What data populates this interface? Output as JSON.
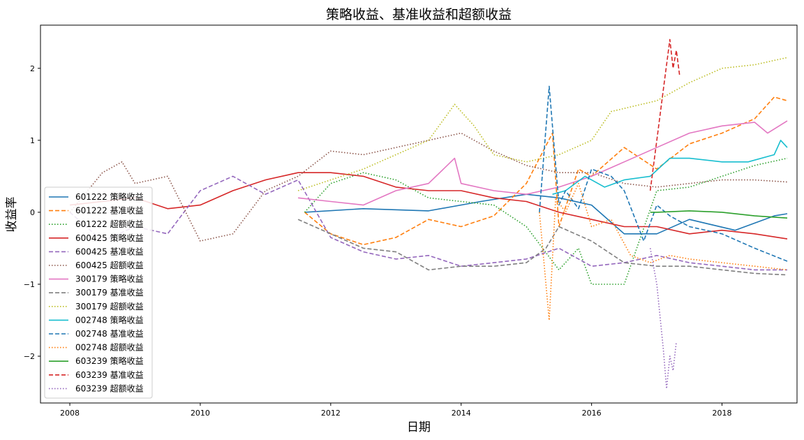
{
  "chart_data": {
    "type": "line",
    "title": "策略收益、基准收益和超额收益",
    "xlabel": "日期",
    "ylabel": "收益率",
    "xlim": [
      2007.55,
      2019.15
    ],
    "ylim": [
      -2.65,
      2.6
    ],
    "xticks": [
      2008,
      2010,
      2012,
      2014,
      2016,
      2018
    ],
    "yticks": [
      -2,
      -1,
      0,
      1,
      2
    ],
    "legend_position": "lower-left",
    "grid": false,
    "series": [
      {
        "name": "601222 策略收益",
        "color": "#1f77b4",
        "dash": "solid",
        "x": [
          2011.6,
          2012.5,
          2013.5,
          2014.3,
          2015.0,
          2015.5,
          2016.0,
          2016.5,
          2017.0,
          2017.5,
          2018.2,
          2018.8,
          2019.0
        ],
        "y": [
          0.0,
          0.05,
          0.02,
          0.15,
          0.25,
          0.2,
          0.1,
          -0.3,
          -0.3,
          -0.1,
          -0.25,
          -0.05,
          -0.02
        ]
      },
      {
        "name": "601222 基准收益",
        "color": "#ff7f0e",
        "dash": "dashed",
        "x": [
          2011.6,
          2012.0,
          2012.5,
          2013.0,
          2013.5,
          2014.0,
          2014.5,
          2015.0,
          2015.4,
          2015.5,
          2015.8,
          2016.0,
          2016.5,
          2017.0,
          2017.5,
          2018.0,
          2018.5,
          2018.8,
          2019.0
        ],
        "y": [
          0.0,
          -0.3,
          -0.45,
          -0.35,
          -0.1,
          -0.2,
          -0.05,
          0.4,
          1.1,
          -0.2,
          0.6,
          0.5,
          0.9,
          0.6,
          0.95,
          1.1,
          1.3,
          1.6,
          1.55
        ]
      },
      {
        "name": "601222 超额收益",
        "color": "#2ca02c",
        "dash": "dotted",
        "x": [
          2011.6,
          2012.0,
          2012.5,
          2013.0,
          2013.5,
          2014.0,
          2014.5,
          2015.0,
          2015.5,
          2015.8,
          2016.0,
          2016.5,
          2017.0,
          2017.5,
          2018.0,
          2018.5,
          2019.0
        ],
        "y": [
          0.0,
          0.4,
          0.55,
          0.45,
          0.2,
          0.15,
          0.1,
          -0.2,
          -0.8,
          -0.5,
          -1.0,
          -1.0,
          0.3,
          0.35,
          0.5,
          0.65,
          0.75
        ]
      },
      {
        "name": "600425 策略收益",
        "color": "#d62728",
        "dash": "solid",
        "x": [
          2008.0,
          2008.5,
          2009.0,
          2009.5,
          2010.0,
          2010.5,
          2011.0,
          2011.5,
          2012.0,
          2012.5,
          2013.0,
          2013.5,
          2014.0,
          2014.5,
          2015.0,
          2015.5,
          2016.0,
          2016.5,
          2017.0,
          2017.5,
          2018.0,
          2018.5,
          2019.0
        ],
        "y": [
          0.1,
          0.15,
          0.2,
          0.05,
          0.1,
          0.3,
          0.45,
          0.55,
          0.55,
          0.5,
          0.35,
          0.3,
          0.3,
          0.2,
          0.15,
          0.0,
          -0.1,
          -0.2,
          -0.2,
          -0.3,
          -0.25,
          -0.3,
          -0.37
        ]
      },
      {
        "name": "600425 基准收益",
        "color": "#9467bd",
        "dash": "dashed",
        "x": [
          2008.0,
          2008.5,
          2009.0,
          2009.5,
          2010.0,
          2010.5,
          2011.0,
          2011.5,
          2012.0,
          2012.5,
          2013.0,
          2013.5,
          2014.0,
          2014.5,
          2015.0,
          2015.5,
          2016.0,
          2016.5,
          2017.0,
          2017.5,
          2018.0,
          2018.5,
          2019.0
        ],
        "y": [
          0.0,
          -0.4,
          -0.2,
          -0.3,
          0.3,
          0.5,
          0.25,
          0.45,
          -0.35,
          -0.55,
          -0.65,
          -0.6,
          -0.75,
          -0.7,
          -0.65,
          -0.5,
          -0.75,
          -0.7,
          -0.6,
          -0.7,
          -0.75,
          -0.8,
          -0.8
        ]
      },
      {
        "name": "600425 超额收益",
        "color": "#8c564b",
        "dash": "dotted",
        "x": [
          2008.0,
          2008.5,
          2008.8,
          2009.0,
          2009.5,
          2010.0,
          2010.5,
          2011.0,
          2011.5,
          2012.0,
          2012.5,
          2013.0,
          2013.5,
          2014.0,
          2014.5,
          2015.0,
          2015.5,
          2016.0,
          2016.5,
          2017.0,
          2017.5,
          2018.0,
          2018.5,
          2019.0
        ],
        "y": [
          0.0,
          0.55,
          0.7,
          0.4,
          0.5,
          -0.4,
          -0.3,
          0.3,
          0.5,
          0.85,
          0.8,
          0.9,
          1.0,
          1.1,
          0.85,
          0.65,
          0.55,
          0.55,
          0.4,
          0.35,
          0.4,
          0.45,
          0.45,
          0.42
        ]
      },
      {
        "name": "300179 策略收益",
        "color": "#e377c2",
        "dash": "solid",
        "x": [
          2011.5,
          2012.0,
          2012.5,
          2013.0,
          2013.5,
          2013.9,
          2014.0,
          2014.5,
          2015.0,
          2015.5,
          2016.0,
          2016.5,
          2017.0,
          2017.5,
          2018.0,
          2018.5,
          2018.7,
          2019.0
        ],
        "y": [
          0.2,
          0.15,
          0.1,
          0.3,
          0.4,
          0.75,
          0.4,
          0.3,
          0.25,
          0.35,
          0.5,
          0.7,
          0.9,
          1.1,
          1.2,
          1.25,
          1.1,
          1.27
        ]
      },
      {
        "name": "300179 基准收益",
        "color": "#7f7f7f",
        "dash": "dashed",
        "x": [
          2011.5,
          2012.0,
          2012.5,
          2013.0,
          2013.5,
          2014.0,
          2014.5,
          2015.0,
          2015.3,
          2015.5,
          2016.0,
          2016.5,
          2017.0,
          2017.5,
          2018.0,
          2018.5,
          2019.0
        ],
        "y": [
          -0.1,
          -0.3,
          -0.5,
          -0.55,
          -0.8,
          -0.75,
          -0.75,
          -0.7,
          -0.5,
          -0.2,
          -0.4,
          -0.7,
          -0.75,
          -0.75,
          -0.8,
          -0.85,
          -0.87
        ]
      },
      {
        "name": "300179 超额收益",
        "color": "#bcbd22",
        "dash": "dotted",
        "x": [
          2011.5,
          2012.0,
          2012.5,
          2013.0,
          2013.5,
          2013.9,
          2014.2,
          2014.5,
          2015.0,
          2015.5,
          2016.0,
          2016.3,
          2017.0,
          2017.5,
          2018.0,
          2018.5,
          2019.0
        ],
        "y": [
          0.3,
          0.45,
          0.6,
          0.8,
          1.0,
          1.5,
          1.2,
          0.8,
          0.7,
          0.8,
          1.0,
          1.4,
          1.55,
          1.8,
          2.0,
          2.05,
          2.15
        ]
      },
      {
        "name": "002748 策略收益",
        "color": "#17becf",
        "dash": "solid",
        "x": [
          2015.4,
          2015.6,
          2015.9,
          2016.0,
          2016.2,
          2016.5,
          2016.9,
          2017.2,
          2017.5,
          2018.0,
          2018.4,
          2018.8,
          2018.9,
          2019.0
        ],
        "y": [
          0.25,
          0.3,
          0.5,
          0.45,
          0.35,
          0.45,
          0.5,
          0.75,
          0.75,
          0.7,
          0.7,
          0.8,
          1.0,
          0.9
        ]
      },
      {
        "name": "002748 基准收益",
        "color": "#1f77b4",
        "dash": "dashed",
        "x": [
          2015.2,
          2015.35,
          2015.5,
          2015.6,
          2015.8,
          2016.0,
          2016.3,
          2016.5,
          2016.8,
          2017.0,
          2017.2,
          2017.5,
          2018.0,
          2018.5,
          2019.0
        ],
        "y": [
          0.0,
          1.75,
          0.1,
          0.3,
          0.05,
          0.6,
          0.5,
          0.3,
          -0.4,
          0.1,
          -0.05,
          -0.2,
          -0.3,
          -0.5,
          -0.68
        ]
      },
      {
        "name": "002748 超额收益",
        "color": "#ff7f0e",
        "dash": "dotted",
        "x": [
          2015.2,
          2015.35,
          2015.45,
          2015.6,
          2015.8,
          2016.0,
          2016.3,
          2016.6,
          2016.9,
          2017.2,
          2017.5,
          2018.0,
          2018.5,
          2019.0
        ],
        "y": [
          0.0,
          -1.5,
          0.2,
          0.0,
          0.4,
          -0.2,
          -0.1,
          -0.6,
          -0.7,
          -0.6,
          -0.65,
          -0.7,
          -0.75,
          -0.8
        ]
      },
      {
        "name": "603239 策略收益",
        "color": "#2ca02c",
        "dash": "solid",
        "x": [
          2016.9,
          2017.0,
          2017.5,
          2018.0,
          2018.5,
          2019.0
        ],
        "y": [
          0.0,
          0.0,
          0.02,
          0.0,
          -0.05,
          -0.08
        ]
      },
      {
        "name": "603239 基准收益",
        "color": "#d62728",
        "dash": "dashed",
        "x": [
          2016.9,
          2017.0,
          2017.1,
          2017.2,
          2017.25,
          2017.3,
          2017.35
        ],
        "y": [
          0.3,
          1.0,
          1.7,
          2.4,
          2.0,
          2.25,
          1.9
        ]
      },
      {
        "name": "603239 超额收益",
        "color": "#9467bd",
        "dash": "dotted",
        "x": [
          2016.9,
          2017.0,
          2017.1,
          2017.15,
          2017.2,
          2017.25,
          2017.3
        ],
        "y": [
          -0.5,
          -1.0,
          -1.9,
          -2.45,
          -2.0,
          -2.2,
          -1.8
        ]
      }
    ]
  }
}
